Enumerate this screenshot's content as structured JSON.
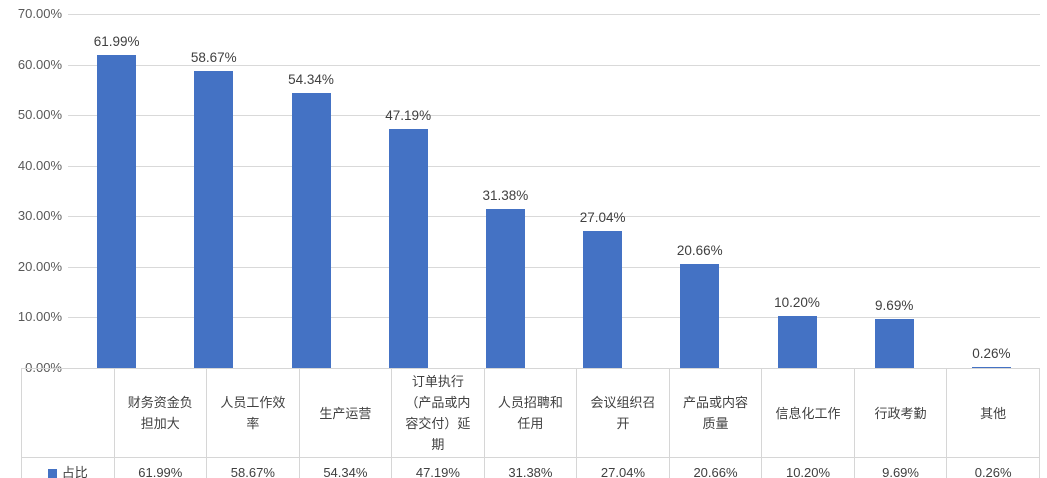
{
  "chart_data": {
    "type": "bar",
    "title": "",
    "series_name": "占比",
    "categories": [
      "财务资金负担加大",
      "人员工作效率",
      "生产运营",
      "订单执行（产品或内容交付）延期",
      "人员招聘和任用",
      "会议组织召开",
      "产品或内容质量",
      "信息化工作",
      "行政考勤",
      "其他"
    ],
    "values": [
      61.99,
      58.67,
      54.34,
      47.19,
      31.38,
      27.04,
      20.66,
      10.2,
      9.69,
      0.26
    ],
    "value_labels": [
      "61.99%",
      "58.67%",
      "54.34%",
      "47.19%",
      "31.38%",
      "27.04%",
      "20.66%",
      "10.20%",
      "9.69%",
      "0.26%"
    ],
    "table_values": [
      "61.99%",
      "58.67%",
      "54.34%",
      "47.19%",
      "31.38%",
      "27.04%",
      "20.66%",
      "10.20%",
      "9.69%",
      "0.26%"
    ],
    "y_ticks": [
      "0.00%",
      "10.00%",
      "20.00%",
      "30.00%",
      "40.00%",
      "50.00%",
      "60.00%",
      "70.00%"
    ],
    "ylim": [
      0,
      70
    ],
    "y_tick_step": 10,
    "grid": true,
    "legend_position": "table-row-left",
    "colors": {
      "bar": "#4472c4",
      "gridline": "#d9d9d9",
      "table_border": "#d6d6d6",
      "text": "#404040",
      "legend_marker": "#4472c4"
    }
  }
}
